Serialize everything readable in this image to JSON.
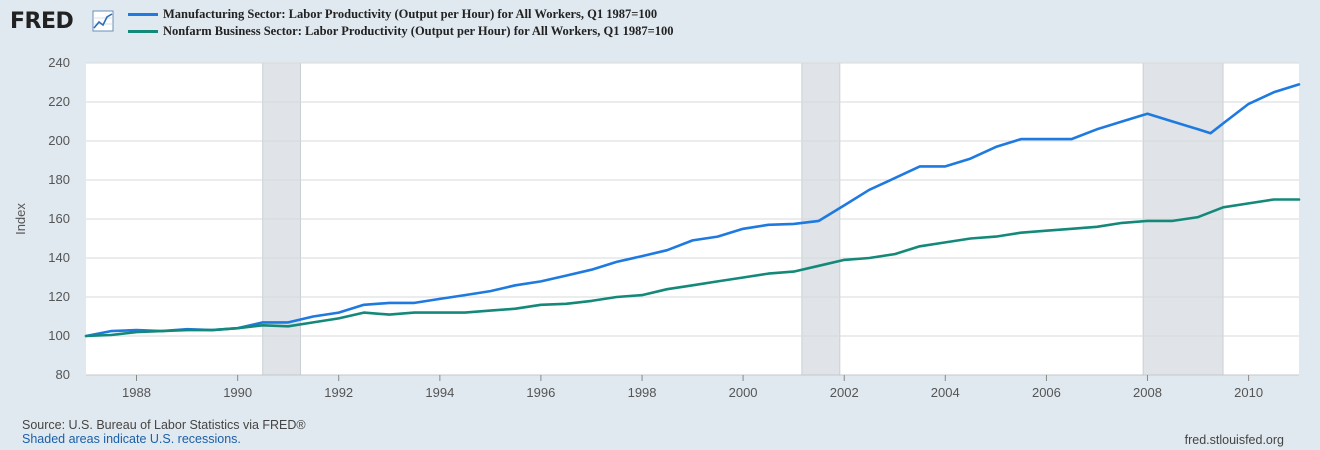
{
  "header": {
    "logo_text": "FRED",
    "logo_icon": "line-graph-icon"
  },
  "footer": {
    "source": "Source: U.S. Bureau of Labor Statistics via FRED®",
    "recessions_note": "Shaded areas indicate U.S. recessions.",
    "site": "fred.stlouisfed.org"
  },
  "chart_data": {
    "type": "line",
    "title": "",
    "xlabel": "",
    "ylabel": "Index",
    "ylim": [
      80,
      240
    ],
    "yticks": [
      80,
      100,
      120,
      140,
      160,
      180,
      200,
      220,
      240
    ],
    "xlim": [
      "1987-01-01",
      "2010-12-31"
    ],
    "xticks": [
      "1988",
      "1990",
      "1992",
      "1994",
      "1996",
      "1998",
      "2000",
      "2002",
      "2004",
      "2006",
      "2008",
      "2010"
    ],
    "grid": true,
    "legend": "top-left",
    "recessions": [
      {
        "start": "1990-07-01",
        "end": "1991-03-31"
      },
      {
        "start": "2001-03-01",
        "end": "2001-11-30"
      },
      {
        "start": "2007-12-01",
        "end": "2009-06-30"
      }
    ],
    "series": [
      {
        "name": "Manufacturing Sector: Labor Productivity (Output per Hour) for All Workers, Q1 1987=100",
        "color": "#1e7ae0",
        "x": [
          "1987-01-01",
          "1987-07-01",
          "1988-01-01",
          "1988-07-01",
          "1989-01-01",
          "1989-07-01",
          "1990-01-01",
          "1990-07-01",
          "1991-01-01",
          "1991-07-01",
          "1992-01-01",
          "1992-07-01",
          "1993-01-01",
          "1993-07-01",
          "1994-01-01",
          "1994-07-01",
          "1995-01-01",
          "1995-07-01",
          "1996-01-01",
          "1996-07-01",
          "1997-01-01",
          "1997-07-01",
          "1998-01-01",
          "1998-07-01",
          "1999-01-01",
          "1999-07-01",
          "2000-01-01",
          "2000-07-01",
          "2001-01-01",
          "2001-07-01",
          "2002-01-01",
          "2002-07-01",
          "2003-01-01",
          "2003-07-01",
          "2004-01-01",
          "2004-07-01",
          "2005-01-01",
          "2005-07-01",
          "2006-01-01",
          "2006-07-01",
          "2007-01-01",
          "2007-07-01",
          "2008-01-01",
          "2008-07-01",
          "2009-01-01",
          "2009-04-01",
          "2009-07-01",
          "2010-01-01",
          "2010-07-01",
          "2010-12-31"
        ],
        "values": [
          100,
          102.5,
          103,
          102.5,
          103.5,
          103,
          104,
          107,
          107,
          110,
          112,
          116,
          117,
          117,
          119,
          121,
          123,
          126,
          128,
          131,
          134,
          138,
          141,
          144,
          149,
          151,
          155,
          157,
          157.5,
          159,
          167,
          175,
          181,
          187,
          187,
          191,
          197,
          201,
          201,
          201,
          206,
          210,
          214,
          210,
          206,
          204,
          209,
          219,
          225,
          229
        ]
      },
      {
        "name": "Nonfarm Business Sector: Labor Productivity (Output per Hour) for All Workers, Q1 1987=100",
        "color": "#14897a",
        "x": [
          "1987-01-01",
          "1987-07-01",
          "1988-01-01",
          "1988-07-01",
          "1989-01-01",
          "1989-07-01",
          "1990-01-01",
          "1990-07-01",
          "1991-01-01",
          "1991-07-01",
          "1992-01-01",
          "1992-07-01",
          "1993-01-01",
          "1993-07-01",
          "1994-01-01",
          "1994-07-01",
          "1995-01-01",
          "1995-07-01",
          "1996-01-01",
          "1996-07-01",
          "1997-01-01",
          "1997-07-01",
          "1998-01-01",
          "1998-07-01",
          "1999-01-01",
          "1999-07-01",
          "2000-01-01",
          "2000-07-01",
          "2001-01-01",
          "2001-07-01",
          "2002-01-01",
          "2002-07-01",
          "2003-01-01",
          "2003-07-01",
          "2004-01-01",
          "2004-07-01",
          "2005-01-01",
          "2005-07-01",
          "2006-01-01",
          "2006-07-01",
          "2007-01-01",
          "2007-07-01",
          "2008-01-01",
          "2008-07-01",
          "2009-01-01",
          "2009-07-01",
          "2010-01-01",
          "2010-07-01",
          "2010-12-31"
        ],
        "values": [
          100,
          100.5,
          102,
          102.5,
          103,
          103,
          104,
          105.5,
          105,
          107,
          109,
          112,
          111,
          112,
          112,
          112,
          113,
          114,
          116,
          116.5,
          118,
          120,
          121,
          124,
          126,
          128,
          130,
          132,
          133,
          136,
          139,
          140,
          142,
          146,
          148,
          150,
          151,
          153,
          154,
          155,
          156,
          158,
          159,
          159,
          161,
          166,
          168,
          170,
          170
        ]
      }
    ]
  }
}
